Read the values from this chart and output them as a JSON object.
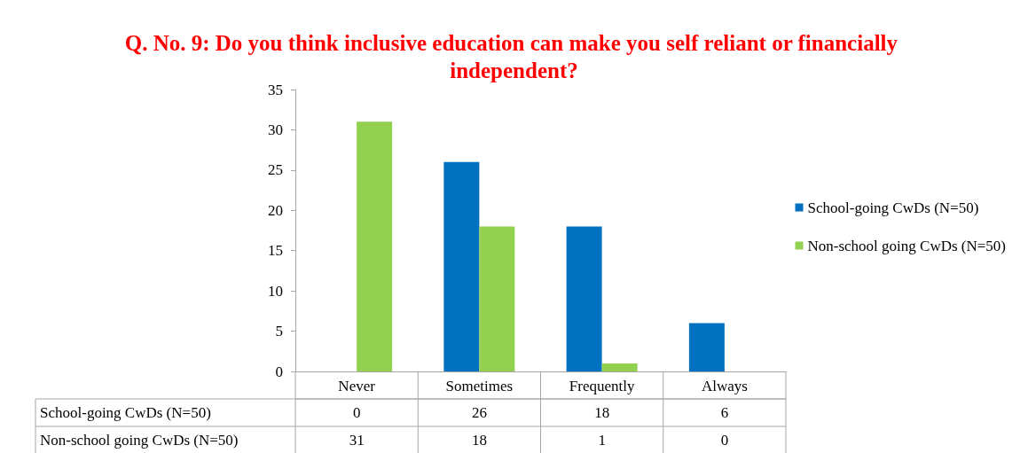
{
  "chart_data": {
    "type": "bar",
    "title": "Q. No. 9: Do you think inclusive education can make you self reliant or financially independent?",
    "categories": [
      "Never",
      "Sometimes",
      "Frequently",
      "Always"
    ],
    "series": [
      {
        "name": "School-going CwDs (N=50)",
        "color": "#0070c0",
        "values": [
          0,
          26,
          18,
          6
        ]
      },
      {
        "name": "Non-school going CwDs (N=50)",
        "color": "#92d050",
        "values": [
          31,
          18,
          1,
          0
        ]
      }
    ],
    "ylim": [
      0,
      35
    ],
    "yticks": [
      0,
      5,
      10,
      15,
      20,
      25,
      30,
      35
    ],
    "grid": false,
    "legend": "right",
    "data_labels": true
  }
}
